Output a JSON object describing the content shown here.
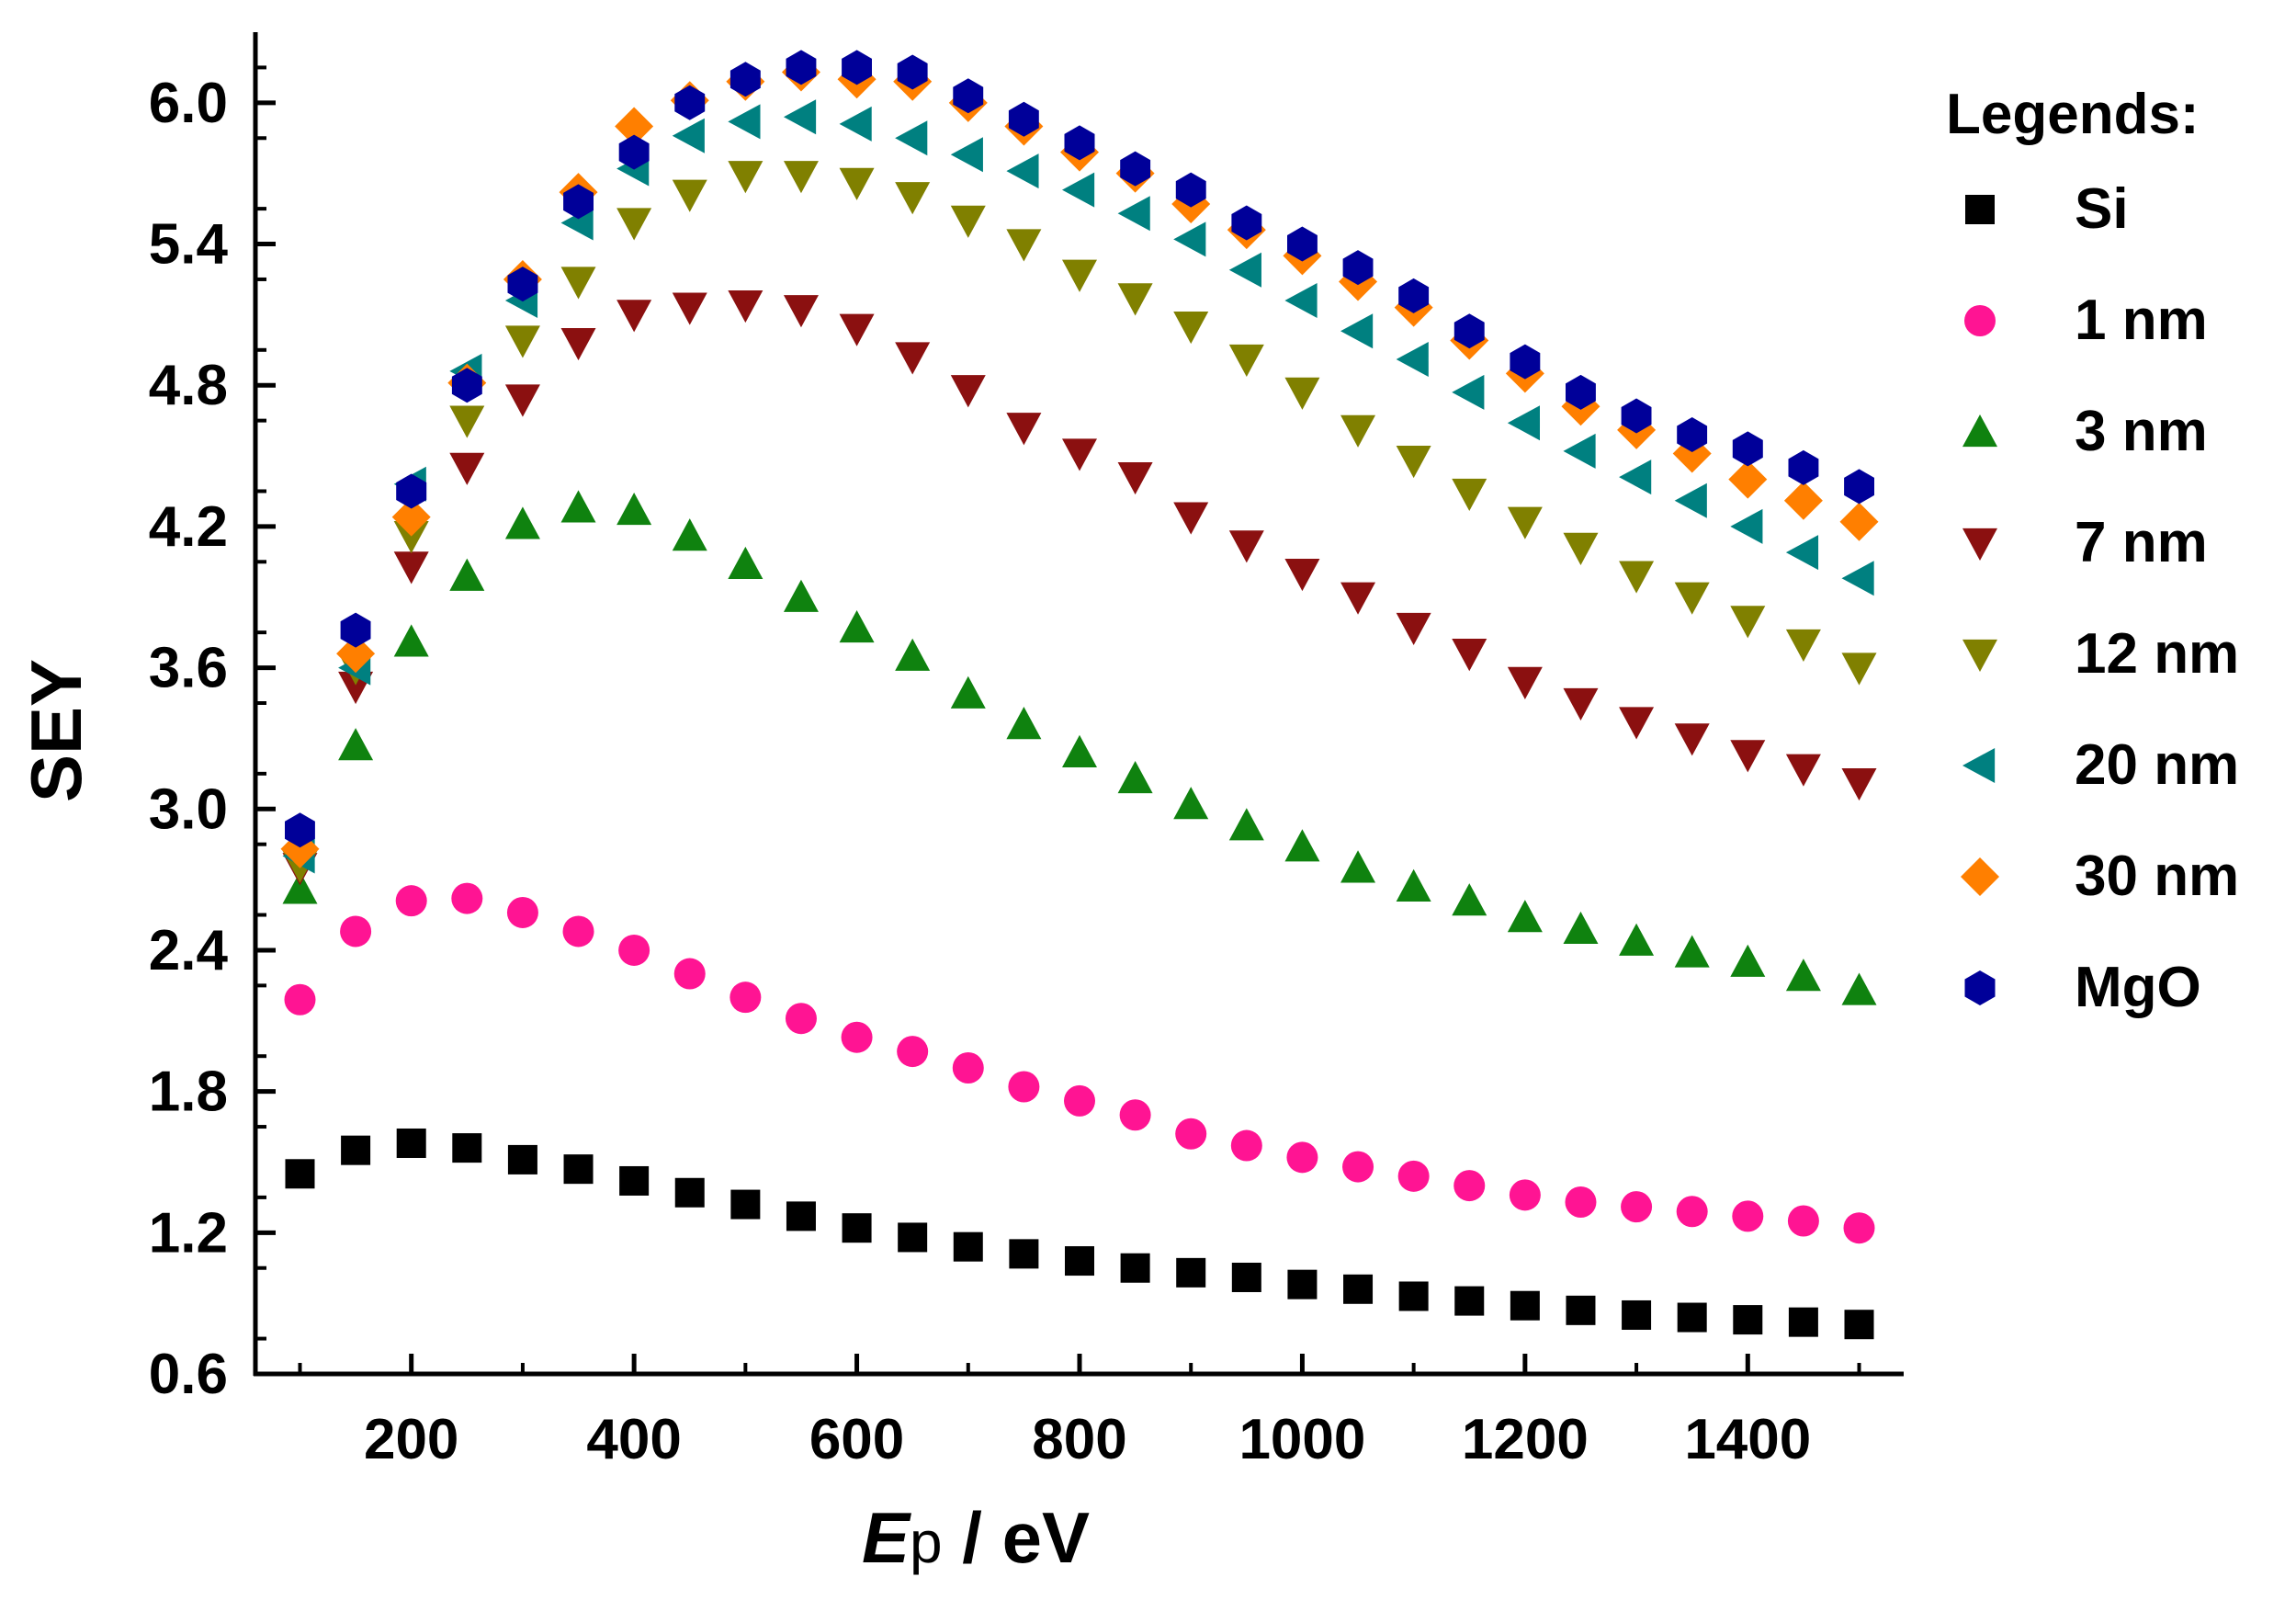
{
  "chart_data": {
    "type": "scatter",
    "title": "",
    "xlabel_main": "E",
    "xlabel_sub": "p",
    "xlabel_rest": " / eV",
    "ylabel": "SEY",
    "xlim": [
      60,
      1540
    ],
    "ylim": [
      0.6,
      6.3
    ],
    "xticks": [
      200,
      400,
      600,
      800,
      1000,
      1200,
      1400
    ],
    "yticks": [
      0.6,
      1.2,
      1.8,
      2.4,
      3.0,
      3.6,
      4.2,
      4.8,
      5.4,
      6.0
    ],
    "ytick_labels": [
      "0.6",
      "1.2",
      "1.8",
      "2.4",
      "3.0",
      "3.6",
      "4.2",
      "4.8",
      "5.4",
      "6.0"
    ],
    "legend_title": "Legends:",
    "legend_position": "right",
    "x": [
      100,
      150,
      200,
      250,
      300,
      350,
      400,
      450,
      500,
      550,
      600,
      650,
      700,
      750,
      800,
      850,
      900,
      950,
      1000,
      1050,
      1100,
      1150,
      1200,
      1250,
      1300,
      1350,
      1400,
      1450,
      1500
    ],
    "series": [
      {
        "name": "Si",
        "marker": "square",
        "color": "#000000",
        "values": [
          1.45,
          1.55,
          1.58,
          1.56,
          1.51,
          1.47,
          1.42,
          1.37,
          1.32,
          1.27,
          1.22,
          1.18,
          1.14,
          1.11,
          1.08,
          1.05,
          1.03,
          1.01,
          0.98,
          0.96,
          0.93,
          0.91,
          0.89,
          0.87,
          0.85,
          0.84,
          0.83,
          0.82,
          0.81
        ]
      },
      {
        "name": "1 nm",
        "marker": "circle",
        "color": "#FF1493",
        "values": [
          2.19,
          2.48,
          2.61,
          2.62,
          2.56,
          2.48,
          2.4,
          2.3,
          2.2,
          2.11,
          2.03,
          1.97,
          1.9,
          1.82,
          1.76,
          1.7,
          1.62,
          1.57,
          1.52,
          1.48,
          1.44,
          1.4,
          1.36,
          1.33,
          1.31,
          1.29,
          1.27,
          1.25,
          1.22
        ]
      },
      {
        "name": "3 nm",
        "marker": "triangle-up",
        "color": "#0F820F",
        "values": [
          2.66,
          3.27,
          3.71,
          3.99,
          4.21,
          4.28,
          4.27,
          4.16,
          4.04,
          3.9,
          3.77,
          3.65,
          3.49,
          3.36,
          3.24,
          3.13,
          3.02,
          2.93,
          2.84,
          2.75,
          2.67,
          2.61,
          2.54,
          2.49,
          2.44,
          2.39,
          2.35,
          2.29,
          2.23
        ]
      },
      {
        "name": "7 nm",
        "marker": "triangle-down",
        "color": "#8B1010",
        "values": [
          2.75,
          3.52,
          4.03,
          4.45,
          4.74,
          4.98,
          5.1,
          5.13,
          5.14,
          5.12,
          5.04,
          4.92,
          4.78,
          4.62,
          4.51,
          4.41,
          4.24,
          4.12,
          4.0,
          3.9,
          3.77,
          3.66,
          3.54,
          3.45,
          3.37,
          3.3,
          3.23,
          3.17,
          3.11
        ]
      },
      {
        "name": "12 nm",
        "marker": "triangle-down",
        "color": "#808000",
        "values": [
          2.76,
          3.6,
          4.16,
          4.65,
          4.99,
          5.24,
          5.49,
          5.61,
          5.69,
          5.69,
          5.66,
          5.6,
          5.5,
          5.4,
          5.27,
          5.17,
          5.05,
          4.91,
          4.77,
          4.61,
          4.48,
          4.34,
          4.22,
          4.11,
          3.99,
          3.9,
          3.8,
          3.7,
          3.6
        ]
      },
      {
        "name": "20 nm",
        "marker": "triangle-left",
        "color": "#008080",
        "values": [
          2.8,
          3.6,
          4.38,
          4.86,
          5.16,
          5.49,
          5.72,
          5.86,
          5.92,
          5.94,
          5.91,
          5.85,
          5.78,
          5.71,
          5.63,
          5.53,
          5.42,
          5.29,
          5.16,
          5.03,
          4.91,
          4.77,
          4.64,
          4.52,
          4.41,
          4.31,
          4.2,
          4.09,
          3.98
        ]
      },
      {
        "name": "30 nm",
        "marker": "diamond",
        "color": "#FF7F00",
        "values": [
          2.83,
          3.66,
          4.24,
          4.81,
          5.25,
          5.62,
          5.9,
          6.01,
          6.09,
          6.13,
          6.1,
          6.09,
          6.0,
          5.9,
          5.79,
          5.7,
          5.57,
          5.46,
          5.35,
          5.24,
          5.13,
          4.99,
          4.85,
          4.71,
          4.61,
          4.51,
          4.4,
          4.31,
          4.22
        ]
      },
      {
        "name": "MgO",
        "marker": "hexagon",
        "color": "#000099",
        "values": [
          2.91,
          3.76,
          4.35,
          4.8,
          5.23,
          5.58,
          5.79,
          6.0,
          6.1,
          6.15,
          6.15,
          6.13,
          6.03,
          5.93,
          5.83,
          5.72,
          5.63,
          5.49,
          5.4,
          5.3,
          5.18,
          5.03,
          4.9,
          4.77,
          4.67,
          4.59,
          4.53,
          4.45,
          4.37
        ]
      }
    ]
  }
}
